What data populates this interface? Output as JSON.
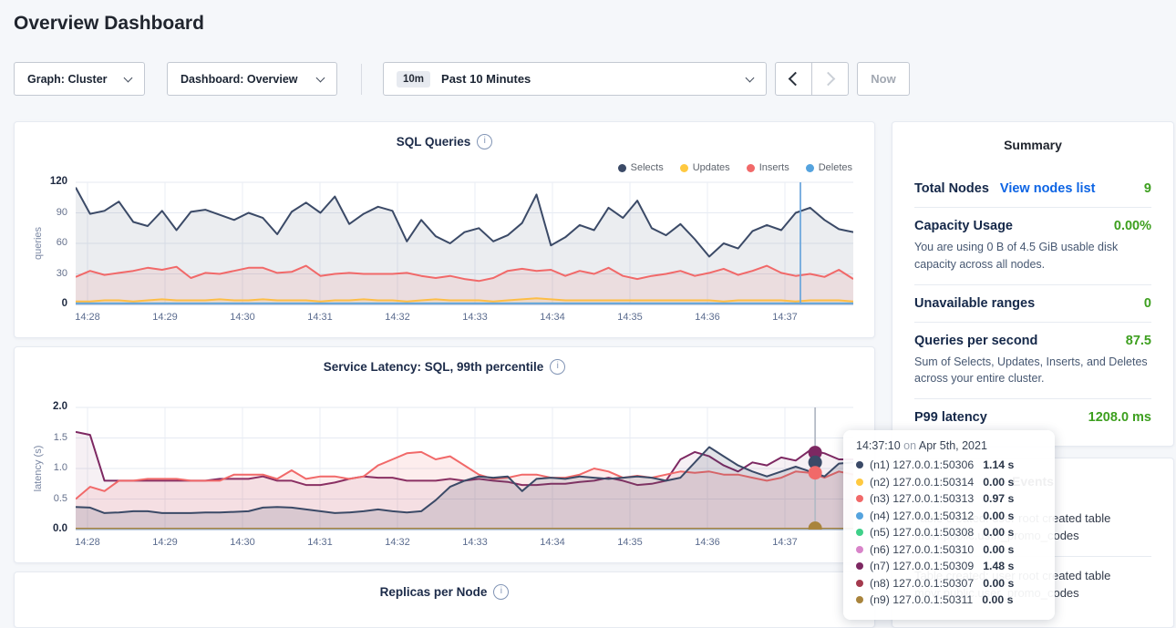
{
  "page": {
    "title": "Overview Dashboard"
  },
  "icons": {
    "info": "i"
  },
  "toolbar": {
    "graph_dropdown": "Graph: Cluster",
    "dashboard_dropdown": "Dashboard: Overview",
    "time_badge": "10m",
    "time_label": "Past 10 Minutes",
    "now_label": "Now"
  },
  "chart_data": [
    {
      "id": "sql-queries",
      "type": "area",
      "title": "SQL Queries",
      "ylabel": "queries",
      "ylim": [
        0,
        120
      ],
      "y_ticks": [
        "0",
        "30",
        "60",
        "90",
        "120"
      ],
      "x_ticks": [
        "14:28",
        "14:29",
        "14:30",
        "14:31",
        "14:32",
        "14:33",
        "14:34",
        "14:35",
        "14:36",
        "14:37"
      ],
      "grid": true,
      "legend_position": "top-right",
      "hover": {
        "x_tick_offset": 9.2,
        "color": "#6FA8DC"
      },
      "series": [
        {
          "name": "Selects",
          "color": "#3B4A67",
          "fill_opacity": 0.1,
          "values": [
            115,
            89,
            92,
            101,
            81,
            77,
            92,
            73,
            91,
            93,
            88,
            83,
            90,
            85,
            69,
            91,
            100,
            90,
            106,
            79,
            89,
            96,
            92,
            62,
            83,
            67,
            60,
            71,
            75,
            62,
            68,
            80,
            108,
            58,
            66,
            78,
            73,
            95,
            85,
            102,
            75,
            68,
            79,
            64,
            47,
            60,
            55,
            72,
            78,
            73,
            90,
            95,
            83,
            74,
            71
          ]
        },
        {
          "name": "Updates",
          "color": "#FFC940",
          "fill_opacity": 0.15,
          "values": [
            3,
            3,
            4,
            4,
            3,
            4,
            5,
            4,
            4,
            4,
            5,
            4,
            4,
            5,
            4,
            4,
            4,
            3,
            4,
            4,
            5,
            4,
            4,
            3,
            4,
            5,
            4,
            4,
            4,
            3,
            4,
            5,
            6,
            5,
            4,
            4,
            4,
            4,
            4,
            4,
            4,
            4,
            4,
            4,
            4,
            3,
            4,
            4,
            4,
            4,
            3,
            4,
            4,
            4,
            3
          ]
        },
        {
          "name": "Inserts",
          "color": "#F16969",
          "fill_opacity": 0.12,
          "values": [
            27,
            33,
            29,
            31,
            33,
            36,
            34,
            37,
            26,
            31,
            30,
            33,
            36,
            36,
            31,
            32,
            38,
            28,
            30,
            31,
            30,
            30,
            30,
            31,
            28,
            26,
            28,
            25,
            23,
            26,
            33,
            35,
            33,
            34,
            28,
            33,
            30,
            36,
            28,
            25,
            28,
            30,
            33,
            28,
            31,
            35,
            29,
            33,
            38,
            31,
            28,
            30,
            27,
            34,
            25
          ]
        },
        {
          "name": "Deletes",
          "color": "#55A3DE",
          "fill_opacity": 0.25,
          "flat": 1,
          "n": 55
        }
      ]
    },
    {
      "id": "service-latency",
      "type": "area",
      "title": "Service Latency: SQL, 99th percentile",
      "ylabel": "latency (s)",
      "ylim": [
        0,
        2.0
      ],
      "y_ticks": [
        "0.0",
        "0.5",
        "1.0",
        "1.5",
        "2.0"
      ],
      "x_ticks": [
        "14:28",
        "14:29",
        "14:30",
        "14:31",
        "14:32",
        "14:33",
        "14:34",
        "14:35",
        "14:36",
        "14:37"
      ],
      "grid": true,
      "hover": {
        "x_tick_offset": 9.39,
        "color": "#B4BAC5",
        "dots": [
          {
            "color": "#7D2862",
            "value": 1.26
          },
          {
            "color": "#3B4A67",
            "value": 1.1
          },
          {
            "color": "#F16969",
            "value": 0.93
          },
          {
            "color": "#A9843C",
            "value": 0.02
          }
        ]
      },
      "series": [
        {
          "name": "(n7) 127.0.0.1:50309",
          "color": "#7D2862",
          "fill_opacity": 0.07,
          "values": [
            1.6,
            1.55,
            0.8,
            0.8,
            0.8,
            0.8,
            0.8,
            0.8,
            0.8,
            0.8,
            0.83,
            0.83,
            0.83,
            0.87,
            0.8,
            0.8,
            0.73,
            0.73,
            0.77,
            0.83,
            0.87,
            0.85,
            0.85,
            0.8,
            0.8,
            0.8,
            0.83,
            0.8,
            0.83,
            0.8,
            0.78,
            0.73,
            0.73,
            0.75,
            0.75,
            0.78,
            0.8,
            0.85,
            0.8,
            0.73,
            0.75,
            0.8,
            1.15,
            1.27,
            1.2,
            1.05,
            0.95,
            1.1,
            1.05,
            1.18,
            1.13,
            1.3,
            1.25,
            1.15,
            1.15
          ]
        },
        {
          "name": "(n3) 127.0.0.1:50313",
          "color": "#F16969",
          "fill_opacity": 0.12,
          "values": [
            0.5,
            0.7,
            0.63,
            0.8,
            0.8,
            0.83,
            0.83,
            0.83,
            0.8,
            0.8,
            0.8,
            0.9,
            0.9,
            0.9,
            0.83,
            0.97,
            0.83,
            0.87,
            0.87,
            0.83,
            0.87,
            1.05,
            1.15,
            1.25,
            1.27,
            1.15,
            1.2,
            1.05,
            0.9,
            0.83,
            0.85,
            0.9,
            0.9,
            0.85,
            0.85,
            0.9,
            1.0,
            0.95,
            0.85,
            0.88,
            0.85,
            0.9,
            0.95,
            0.93,
            0.95,
            0.9,
            0.9,
            0.85,
            0.8,
            0.85,
            0.95,
            0.93,
            0.85,
            0.95,
            0.9
          ]
        },
        {
          "name": "(n1) 127.0.0.1:50306",
          "color": "#3B4A67",
          "fill_opacity": 0.15,
          "values": [
            0.37,
            0.36,
            0.27,
            0.28,
            0.3,
            0.3,
            0.27,
            0.27,
            0.27,
            0.28,
            0.28,
            0.29,
            0.3,
            0.36,
            0.37,
            0.36,
            0.33,
            0.3,
            0.27,
            0.28,
            0.3,
            0.33,
            0.3,
            0.28,
            0.3,
            0.48,
            0.7,
            0.8,
            0.87,
            0.85,
            0.87,
            0.63,
            0.83,
            0.85,
            0.83,
            0.87,
            0.85,
            0.83,
            0.85,
            0.87,
            0.85,
            0.8,
            0.85,
            1.1,
            1.35,
            1.2,
            1.05,
            0.95,
            0.87,
            0.95,
            1.03,
            0.95,
            0.87,
            1.08,
            1.1
          ]
        },
        {
          "name": "(n9) 127.0.0.1:50311",
          "color": "#A9843C",
          "fill_opacity": 0,
          "flat": 0.015,
          "n": 55
        }
      ]
    },
    {
      "id": "replicas",
      "type": "area",
      "title": "Replicas per Node",
      "series": []
    }
  ],
  "summary": {
    "title": "Summary",
    "rows": [
      {
        "label": "Total Nodes",
        "link": "View nodes list",
        "value": "9"
      },
      {
        "label": "Capacity Usage",
        "value": "0.00%",
        "desc": "You are using 0 B of 4.5 GiB usable disk capacity across all nodes."
      },
      {
        "label": "Unavailable ranges",
        "value": "0"
      },
      {
        "label": "Queries per second",
        "value": "87.5",
        "desc": "Sum of Selects, Updates, Inserts, and Deletes across your entire cluster."
      },
      {
        "label": "P99 latency",
        "value": "1208.0 ms"
      }
    ]
  },
  "events": {
    "title": "Events",
    "items": [
      "Table created: user root created table movr.public.user_promo_codes",
      "Table created: user root created table movr.public.user_promo_codes"
    ]
  },
  "tooltip": {
    "time": "14:37:10",
    "on_word": "on",
    "date": "Apr 5th, 2021",
    "rows": [
      {
        "color": "#3B4A67",
        "name": "(n1) 127.0.0.1:50306",
        "value": "1.14 s"
      },
      {
        "color": "#FFC940",
        "name": "(n2) 127.0.0.1:50314",
        "value": "0.00 s"
      },
      {
        "color": "#F16969",
        "name": "(n3) 127.0.0.1:50313",
        "value": "0.97 s"
      },
      {
        "color": "#55A3DE",
        "name": "(n4) 127.0.0.1:50312",
        "value": "0.00 s"
      },
      {
        "color": "#3FD089",
        "name": "(n5) 127.0.0.1:50308",
        "value": "0.00 s"
      },
      {
        "color": "#D884C9",
        "name": "(n6) 127.0.0.1:50310",
        "value": "0.00 s"
      },
      {
        "color": "#7D2862",
        "name": "(n7) 127.0.0.1:50309",
        "value": "1.48 s"
      },
      {
        "color": "#A43A4E",
        "name": "(n8) 127.0.0.1:50307",
        "value": "0.00 s"
      },
      {
        "color": "#A9843C",
        "name": "(n9) 127.0.0.1:50311",
        "value": "0.00 s"
      }
    ]
  }
}
